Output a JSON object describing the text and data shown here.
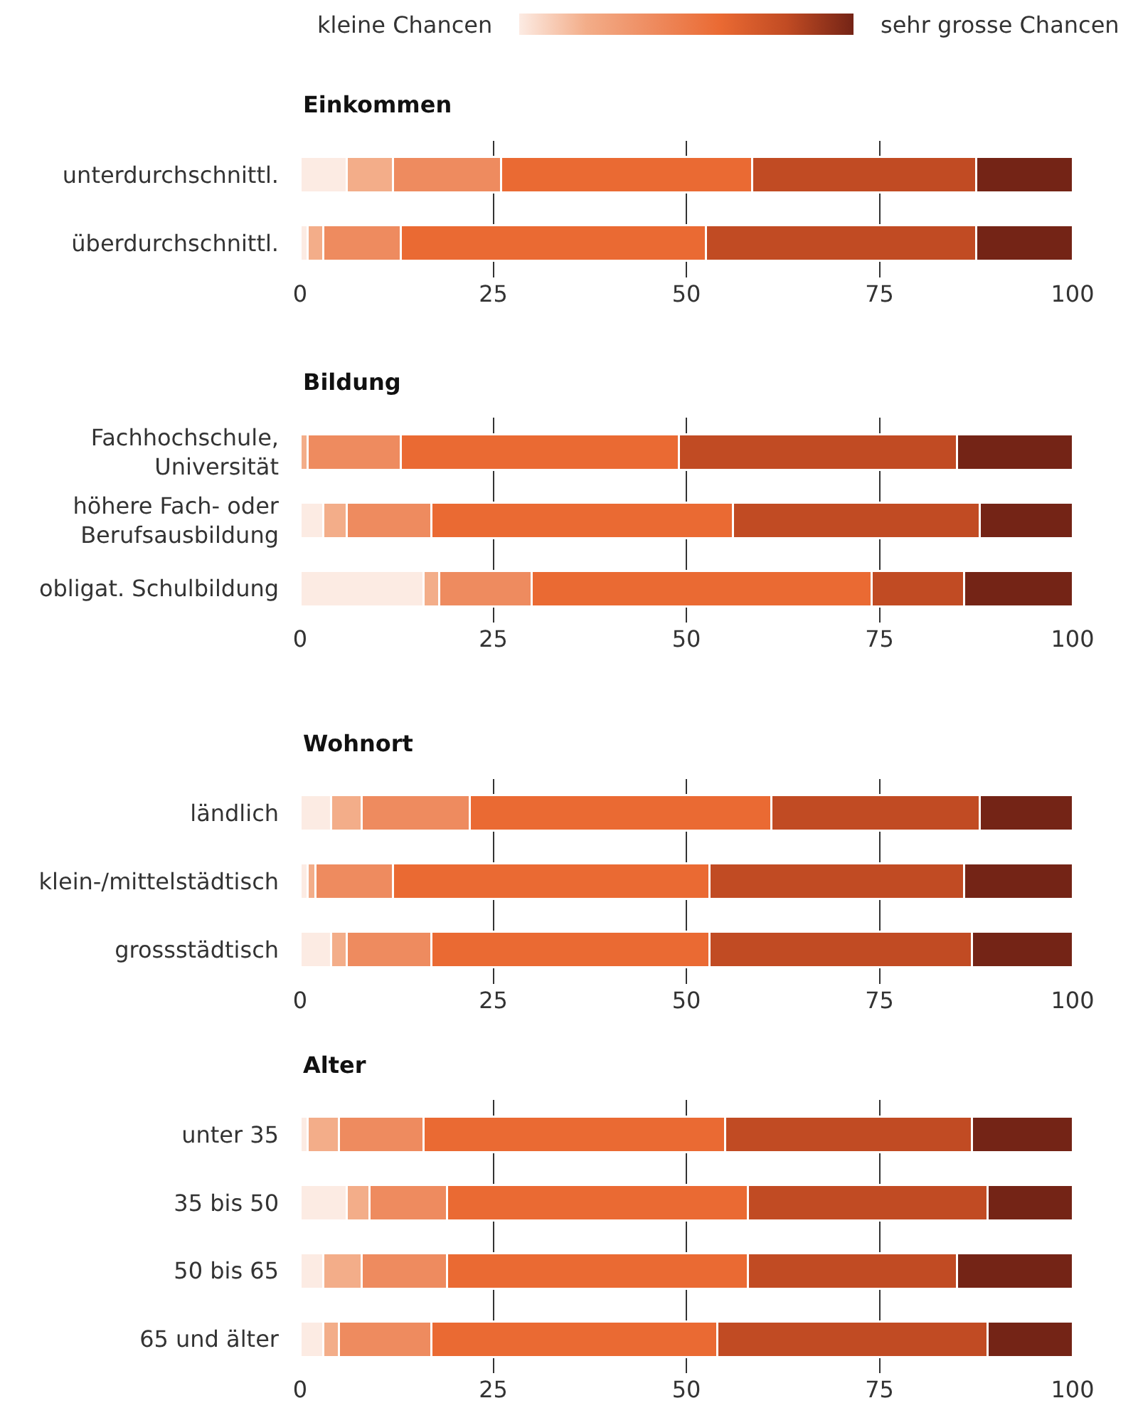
{
  "chart_data": [
    {
      "type": "bar",
      "orientation": "horizontal",
      "stacked": true,
      "title": "Einkommen",
      "categories": [
        "unterdurchschnittl.",
        "überdurchschnittl."
      ],
      "xlim": [
        0,
        100
      ],
      "xticks": [
        0,
        25,
        50,
        75,
        100
      ],
      "grid": "x",
      "annotations": [
        "kleine Chancen",
        "sehr grosse Chancen"
      ],
      "series": [
        {
          "color": "#fcebe3",
          "values": [
            6,
            1
          ]
        },
        {
          "color": "#f3ad89",
          "values": [
            6,
            2
          ]
        },
        {
          "color": "#ee8b5f",
          "values": [
            14,
            10
          ]
        },
        {
          "color": "#ea6a33",
          "values": [
            32.5,
            39.5
          ]
        },
        {
          "color": "#c14b23",
          "values": [
            29,
            35
          ]
        },
        {
          "color": "#742416",
          "values": [
            12.5,
            12.5
          ]
        }
      ]
    },
    {
      "type": "bar",
      "orientation": "horizontal",
      "stacked": true,
      "title": "Bildung",
      "categories": [
        "Fachhochschule,\nUniversität",
        "höhere Fach- oder\nBerufsausbildung",
        "obligat. Schulbildung"
      ],
      "xlim": [
        0,
        100
      ],
      "xticks": [
        0,
        25,
        50,
        75,
        100
      ],
      "grid": "x",
      "series": [
        {
          "color": "#fcebe3",
          "values": [
            0,
            3,
            16
          ]
        },
        {
          "color": "#f3ad89",
          "values": [
            1,
            3,
            2
          ]
        },
        {
          "color": "#ee8b5f",
          "values": [
            12,
            11,
            12
          ]
        },
        {
          "color": "#ea6a33",
          "values": [
            36,
            39,
            44
          ]
        },
        {
          "color": "#c14b23",
          "values": [
            36,
            32,
            12
          ]
        },
        {
          "color": "#742416",
          "values": [
            15,
            12,
            14
          ]
        }
      ]
    },
    {
      "type": "bar",
      "orientation": "horizontal",
      "stacked": true,
      "title": "Wohnort",
      "categories": [
        "ländlich",
        "klein-/mittelstädtisch",
        "grossstädtisch"
      ],
      "xlim": [
        0,
        100
      ],
      "xticks": [
        0,
        25,
        50,
        75,
        100
      ],
      "grid": "x",
      "series": [
        {
          "color": "#fcebe3",
          "values": [
            4,
            1,
            4
          ]
        },
        {
          "color": "#f3ad89",
          "values": [
            4,
            1,
            2
          ]
        },
        {
          "color": "#ee8b5f",
          "values": [
            14,
            10,
            11
          ]
        },
        {
          "color": "#ea6a33",
          "values": [
            39,
            41,
            36
          ]
        },
        {
          "color": "#c14b23",
          "values": [
            27,
            33,
            34
          ]
        },
        {
          "color": "#742416",
          "values": [
            12,
            14,
            13
          ]
        }
      ]
    },
    {
      "type": "bar",
      "orientation": "horizontal",
      "stacked": true,
      "title": "Alter",
      "categories": [
        "unter 35",
        "35 bis 50",
        "50 bis 65",
        "65 und älter"
      ],
      "xlim": [
        0,
        100
      ],
      "xticks": [
        0,
        25,
        50,
        75,
        100
      ],
      "grid": "x",
      "series": [
        {
          "color": "#fcebe3",
          "values": [
            1,
            6,
            3,
            3
          ]
        },
        {
          "color": "#f3ad89",
          "values": [
            4,
            3,
            5,
            2
          ]
        },
        {
          "color": "#ee8b5f",
          "values": [
            11,
            10,
            11,
            12
          ]
        },
        {
          "color": "#ea6a33",
          "values": [
            39,
            39,
            39,
            37
          ]
        },
        {
          "color": "#c14b23",
          "values": [
            32,
            31,
            27,
            35
          ]
        },
        {
          "color": "#742416",
          "values": [
            13,
            11,
            15,
            11
          ]
        }
      ]
    }
  ]
}
